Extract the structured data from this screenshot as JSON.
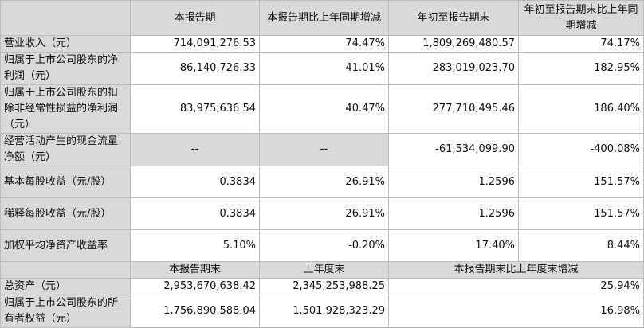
{
  "header": [
    "",
    "本报告期",
    "本报告期比上年同期增减",
    "年初至报告期末",
    "年初至报告期末比上年同期增减"
  ],
  "rows": [
    {
      "label": "营业收入（元）",
      "v": [
        "714,091,276.53",
        "74.47%",
        "1,809,269,480.57",
        "74.17%"
      ]
    },
    {
      "label": "归属于上市公司股东的净利润（元）",
      "v": [
        "86,140,726.33",
        "41.01%",
        "283,019,023.70",
        "182.95%"
      ]
    },
    {
      "label": "归属于上市公司股东的扣除非经常性损益的净利润（元）",
      "v": [
        "83,975,636.54",
        "40.47%",
        "277,710,495.46",
        "186.40%"
      ]
    },
    {
      "label": "经营活动产生的现金流量净额（元）",
      "v": [
        "--",
        "--",
        "-61,534,099.90",
        "-400.08%"
      ]
    },
    {
      "label": "基本每股收益（元/股）",
      "v": [
        "0.3834",
        "26.91%",
        "1.2596",
        "151.57%"
      ]
    },
    {
      "label": "稀释每股收益（元/股）",
      "v": [
        "0.3834",
        "26.91%",
        "1.2596",
        "151.57%"
      ]
    },
    {
      "label": "加权平均净资产收益率",
      "v": [
        "5.10%",
        "-0.20%",
        "17.40%",
        "8.44%"
      ]
    }
  ],
  "header2": [
    "",
    "本报告期末",
    "上年度末",
    "本报告期末比上年度末增减"
  ],
  "rows2": [
    {
      "label": "总资产（元）",
      "v": [
        "2,953,670,638.42",
        "2,345,253,988.25",
        "25.94%"
      ]
    },
    {
      "label": "归属于上市公司股东的所有者权益（元）",
      "v": [
        "1,756,890,588.04",
        "1,501,928,323.29",
        "16.98%"
      ]
    }
  ]
}
